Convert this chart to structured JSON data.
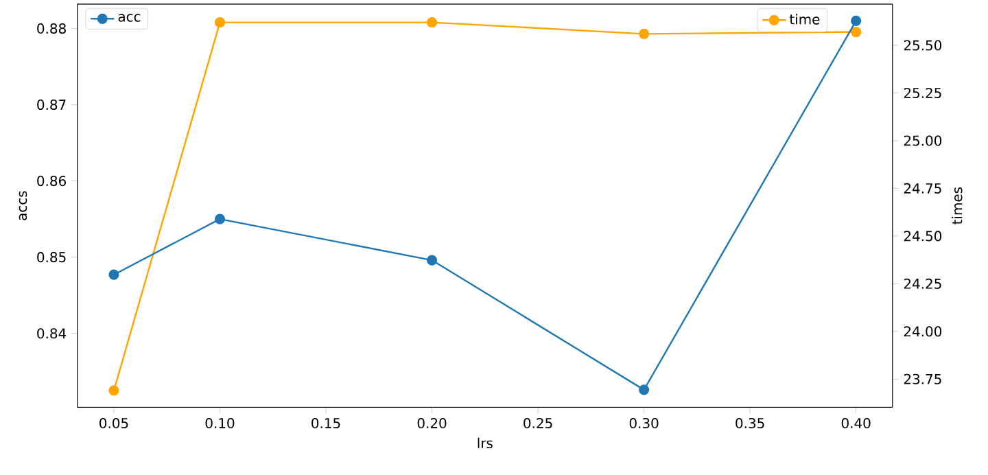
{
  "chart_data": {
    "type": "line",
    "xlabel": "lrs",
    "ylabel": "accs",
    "y2label": "times",
    "x": [
      0.05,
      0.1,
      0.2,
      0.3,
      0.4
    ],
    "series": [
      {
        "name": "acc",
        "color": "#1f77b4",
        "values": [
          0.8477,
          0.855,
          0.8496,
          0.8326,
          0.881
        ]
      },
      {
        "name": "time",
        "color": "#ffa500",
        "axis": "y2",
        "values": [
          23.69,
          25.62,
          25.62,
          25.56,
          25.57
        ]
      }
    ],
    "xlim": [
      0.0328,
      0.4172
    ],
    "xticks": [
      {
        "value": 0.05,
        "label": "0.05"
      },
      {
        "value": 0.1,
        "label": "0.10"
      },
      {
        "value": 0.15,
        "label": "0.15"
      },
      {
        "value": 0.2,
        "label": "0.20"
      },
      {
        "value": 0.25,
        "label": "0.25"
      },
      {
        "value": 0.3,
        "label": "0.30"
      },
      {
        "value": 0.35,
        "label": "0.35"
      },
      {
        "value": 0.4,
        "label": "0.40"
      }
    ],
    "ylim": [
      0.8303,
      0.8832
    ],
    "yticks": [
      0.84,
      0.85,
      0.86,
      0.87,
      0.88
    ],
    "y2lim": [
      23.602,
      25.716
    ],
    "y2ticks": [
      23.75,
      {
        "value": 24.0,
        "label": "24.00"
      },
      24.25,
      {
        "value": 24.5,
        "label": "24.50"
      },
      24.75,
      {
        "value": 25.0,
        "label": "25.00"
      },
      25.25,
      {
        "value": 25.5,
        "label": "25.50"
      }
    ],
    "legend": "top left",
    "marker": "circle",
    "line_style": "solid",
    "grid": false
  }
}
